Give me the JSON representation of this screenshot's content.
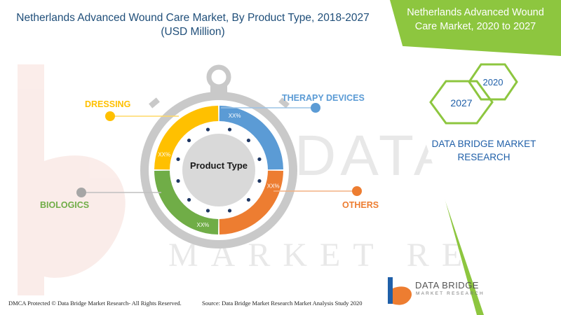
{
  "header": {
    "title_line1": "Netherlands Advanced Wound Care Market, By Product Type, 2018-2027",
    "title_line2": "(USD Million)"
  },
  "side_panel": {
    "title_line1": "Netherlands Advanced Wound",
    "title_line2": "Care Market, 2020 to 2027",
    "year_a": "2027",
    "year_b": "2020",
    "brand_line1": "DATA BRIDGE MARKET",
    "brand_line2": "RESEARCH"
  },
  "watermark": {
    "line1": "DATA BRIDGE",
    "line2": "MARKET RESEARCH"
  },
  "chart_data": {
    "type": "pie",
    "center_label": "Product Type",
    "segments": [
      {
        "name": "THERAPY DEVICES",
        "value_label": "XX%",
        "share": 0.25,
        "color": "#5b9bd5"
      },
      {
        "name": "OTHERS",
        "value_label": "XX%",
        "share": 0.25,
        "color": "#ed7d31"
      },
      {
        "name": "BIOLOGICS",
        "value_label": "XX%",
        "share": 0.25,
        "color": "#70ad47"
      },
      {
        "name": "DRESSING",
        "value_label": "XX%",
        "share": 0.25,
        "color": "#ffc000"
      }
    ],
    "legend": "callouts"
  },
  "footer": {
    "copyright": "DMCA Protected © Data Bridge Market Research- All Rights Reserved.",
    "source": "Source: Data Bridge Market Research Market Analysis Study 2020"
  },
  "logo": {
    "name": "DATA BRIDGE",
    "tagline": "MARKET RESEARCH",
    "colors": [
      "#1f5fa8",
      "#ed7d31"
    ]
  },
  "colors": {
    "panel_green": "#8dc63f",
    "title_blue": "#1f4e79",
    "stopwatch_gray": "#c9c9c9"
  }
}
